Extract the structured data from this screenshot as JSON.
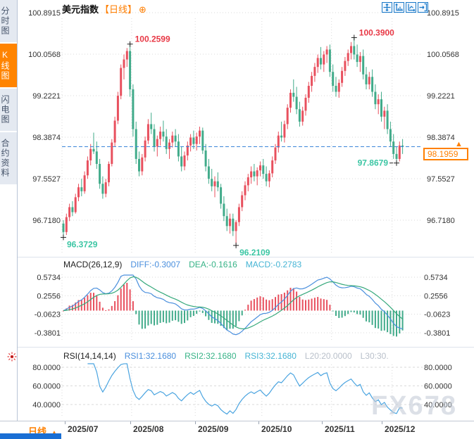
{
  "header": {
    "title": "美元指数",
    "period_tag": "【日线】",
    "add_icon": "⊕",
    "toolbar": [
      {
        "name": "pan-tool"
      },
      {
        "name": "y-axis-scale"
      },
      {
        "name": "auto-scale"
      },
      {
        "name": "exit-view"
      }
    ]
  },
  "sidebar": {
    "tabs": [
      {
        "label": "分时图",
        "active": false
      },
      {
        "label": "K线图",
        "active": true
      },
      {
        "label": "闪电图",
        "active": false
      },
      {
        "label": "合约资料",
        "active": false
      }
    ]
  },
  "main_chart": {
    "current_price": "98.1959",
    "annotations": [
      {
        "text": "100.2599",
        "index": 22,
        "kind": "high",
        "placement": "right-up"
      },
      {
        "text": "100.3900",
        "index": 96,
        "kind": "high",
        "placement": "right-up"
      },
      {
        "text": "97.8679",
        "index": 110,
        "kind": "low",
        "placement": "left"
      },
      {
        "text": "96.3729",
        "index": 0,
        "kind": "low",
        "placement": "below-right"
      },
      {
        "text": "96.2109",
        "index": 57,
        "kind": "low",
        "placement": "below-right"
      }
    ]
  },
  "chart_data": {
    "type": "candlestick",
    "title": "美元指数 日线",
    "y_ticks": [
      100.8915,
      100.0568,
      99.2221,
      98.3874,
      97.5527,
      96.718
    ],
    "months": [
      {
        "label": "2025/07",
        "index": 0
      },
      {
        "label": "2025/08",
        "index": 23
      },
      {
        "label": "2025/09",
        "index": 44
      },
      {
        "label": "2025/10",
        "index": 66
      },
      {
        "label": "2025/11",
        "index": 89
      },
      {
        "label": "2025/12",
        "index": 109
      }
    ],
    "candles": [
      [
        96.65,
        96.72,
        96.3729,
        96.48
      ],
      [
        96.48,
        96.85,
        96.42,
        96.78
      ],
      [
        96.78,
        97.05,
        96.7,
        96.98
      ],
      [
        96.98,
        97.1,
        96.8,
        96.88
      ],
      [
        96.88,
        97.25,
        96.85,
        97.18
      ],
      [
        97.18,
        97.45,
        97.1,
        97.38
      ],
      [
        97.38,
        97.55,
        97.2,
        97.3
      ],
      [
        97.3,
        97.7,
        97.25,
        97.62
      ],
      [
        97.62,
        98.0,
        97.55,
        97.92
      ],
      [
        97.92,
        98.25,
        97.82,
        98.15
      ],
      [
        98.15,
        98.48,
        98.05,
        98.1
      ],
      [
        98.1,
        98.3,
        97.75,
        97.85
      ],
      [
        97.85,
        97.95,
        97.35,
        97.45
      ],
      [
        97.45,
        97.6,
        97.15,
        97.25
      ],
      [
        97.25,
        97.55,
        97.18,
        97.48
      ],
      [
        97.48,
        97.9,
        97.4,
        97.85
      ],
      [
        97.85,
        98.35,
        97.8,
        98.28
      ],
      [
        98.28,
        98.8,
        98.2,
        98.72
      ],
      [
        98.72,
        99.3,
        98.65,
        99.22
      ],
      [
        99.22,
        99.85,
        99.15,
        99.78
      ],
      [
        99.78,
        100.05,
        99.55,
        99.95
      ],
      [
        99.95,
        100.18,
        99.8,
        100.12
      ],
      [
        100.12,
        100.2599,
        99.2,
        99.35
      ],
      [
        99.35,
        99.45,
        98.4,
        98.55
      ],
      [
        98.55,
        98.7,
        97.85,
        97.95
      ],
      [
        97.95,
        98.1,
        97.6,
        97.7
      ],
      [
        97.7,
        98.05,
        97.62,
        97.98
      ],
      [
        97.98,
        98.4,
        97.9,
        98.32
      ],
      [
        98.32,
        98.75,
        98.25,
        98.65
      ],
      [
        98.65,
        98.88,
        98.45,
        98.55
      ],
      [
        98.55,
        98.65,
        98.1,
        98.2
      ],
      [
        98.2,
        98.42,
        98.0,
        98.35
      ],
      [
        98.35,
        98.6,
        98.22,
        98.5
      ],
      [
        98.5,
        98.72,
        98.3,
        98.4
      ],
      [
        98.4,
        98.55,
        98.05,
        98.15
      ],
      [
        98.15,
        98.35,
        97.95,
        98.28
      ],
      [
        98.28,
        98.5,
        98.18,
        98.42
      ],
      [
        98.42,
        98.55,
        98.2,
        98.3
      ],
      [
        98.3,
        98.45,
        97.9,
        98.0
      ],
      [
        98.0,
        98.2,
        97.7,
        97.8
      ],
      [
        97.8,
        98.1,
        97.72,
        98.02
      ],
      [
        98.02,
        98.3,
        97.92,
        98.22
      ],
      [
        98.22,
        98.45,
        98.1,
        98.38
      ],
      [
        98.38,
        98.52,
        98.15,
        98.25
      ],
      [
        98.25,
        98.48,
        98.12,
        98.4
      ],
      [
        98.4,
        98.6,
        98.25,
        98.52
      ],
      [
        98.52,
        98.58,
        98.05,
        98.12
      ],
      [
        98.12,
        98.25,
        97.7,
        97.8
      ],
      [
        97.8,
        97.95,
        97.45,
        97.55
      ],
      [
        97.55,
        97.75,
        97.3,
        97.4
      ],
      [
        97.4,
        97.6,
        97.18,
        97.5
      ],
      [
        97.5,
        97.68,
        97.3,
        97.38
      ],
      [
        97.38,
        97.45,
        96.95,
        97.05
      ],
      [
        97.05,
        97.2,
        96.7,
        96.8
      ],
      [
        96.8,
        96.95,
        96.5,
        96.6
      ],
      [
        96.6,
        96.85,
        96.45,
        96.75
      ],
      [
        96.75,
        96.85,
        96.4,
        96.5
      ],
      [
        96.5,
        96.72,
        96.2109,
        96.68
      ],
      [
        96.68,
        97.05,
        96.6,
        96.98
      ],
      [
        96.98,
        97.3,
        96.9,
        97.22
      ],
      [
        97.22,
        97.5,
        97.12,
        97.42
      ],
      [
        97.42,
        97.65,
        97.3,
        97.58
      ],
      [
        97.58,
        97.8,
        97.45,
        97.7
      ],
      [
        97.7,
        97.85,
        97.5,
        97.6
      ],
      [
        97.6,
        97.78,
        97.42,
        97.72
      ],
      [
        97.72,
        97.9,
        97.6,
        97.82
      ],
      [
        97.82,
        97.95,
        97.55,
        97.65
      ],
      [
        97.65,
        97.8,
        97.4,
        97.5
      ],
      [
        97.5,
        97.72,
        97.38,
        97.66
      ],
      [
        97.66,
        98.0,
        97.58,
        97.92
      ],
      [
        97.92,
        98.25,
        97.85,
        98.18
      ],
      [
        98.18,
        98.5,
        98.08,
        98.42
      ],
      [
        98.42,
        98.7,
        98.3,
        98.38
      ],
      [
        98.38,
        98.72,
        98.28,
        98.65
      ],
      [
        98.65,
        99.05,
        98.55,
        98.98
      ],
      [
        98.98,
        99.35,
        98.88,
        99.28
      ],
      [
        99.28,
        99.55,
        99.1,
        99.2
      ],
      [
        99.2,
        99.4,
        98.85,
        98.95
      ],
      [
        98.95,
        99.1,
        98.6,
        98.7
      ],
      [
        98.7,
        99.0,
        98.62,
        98.92
      ],
      [
        98.92,
        99.25,
        98.82,
        99.18
      ],
      [
        99.18,
        99.5,
        99.08,
        99.42
      ],
      [
        99.42,
        99.7,
        99.3,
        99.62
      ],
      [
        99.62,
        99.88,
        99.5,
        99.8
      ],
      [
        99.8,
        100.05,
        99.68,
        99.98
      ],
      [
        99.98,
        100.2,
        99.75,
        99.85
      ],
      [
        99.85,
        100.12,
        99.7,
        100.05
      ],
      [
        100.05,
        100.22,
        99.88,
        100.15
      ],
      [
        100.15,
        100.25,
        99.6,
        99.7
      ],
      [
        99.7,
        99.85,
        99.3,
        99.42
      ],
      [
        99.42,
        99.6,
        99.2,
        99.3
      ],
      [
        99.3,
        99.55,
        99.18,
        99.48
      ],
      [
        99.48,
        99.8,
        99.4,
        99.72
      ],
      [
        99.72,
        100.0,
        99.62,
        99.92
      ],
      [
        99.92,
        100.15,
        99.82,
        100.08
      ],
      [
        100.08,
        100.3,
        99.95,
        100.22
      ],
      [
        100.22,
        100.39,
        99.95,
        100.05
      ],
      [
        100.05,
        100.25,
        99.8,
        99.9
      ],
      [
        99.9,
        100.1,
        99.7,
        100.02
      ],
      [
        100.02,
        100.15,
        99.55,
        99.65
      ],
      [
        99.65,
        99.8,
        99.35,
        99.45
      ],
      [
        99.45,
        99.7,
        99.35,
        99.6
      ],
      [
        99.6,
        99.75,
        99.2,
        99.3
      ],
      [
        99.3,
        99.45,
        98.95,
        99.05
      ],
      [
        99.05,
        99.25,
        98.85,
        99.15
      ],
      [
        99.15,
        99.3,
        98.7,
        98.8
      ],
      [
        98.8,
        99.0,
        98.55,
        98.92
      ],
      [
        98.92,
        99.05,
        98.45,
        98.55
      ],
      [
        98.55,
        98.7,
        98.2,
        98.3
      ],
      [
        98.3,
        98.45,
        97.95,
        98.05
      ],
      [
        98.05,
        98.2,
        97.8679,
        97.95
      ],
      [
        97.95,
        98.3,
        97.9,
        98.22
      ],
      [
        98.22,
        98.35,
        98.05,
        98.1959
      ]
    ]
  },
  "macd": {
    "name": "MACD(26,12,9)",
    "diff": "DIFF:-0.3007",
    "dea": "DEA:-0.1616",
    "macd": "MACD:-0.2783",
    "y_ticks": [
      0.5734,
      0.2556,
      -0.0623,
      -0.3801
    ]
  },
  "rsi": {
    "name": "RSI(14,14,14)",
    "rsi1": "RSI1:32.1680",
    "rsi2": "RSI2:32.1680",
    "rsi3": "RSI3:32.1680",
    "l20": "L20:20.0000",
    "l30": "L30:30.",
    "y_ticks": [
      80,
      60,
      40
    ]
  },
  "bottom_bar": {
    "period_label": "日线",
    "arrow": "▲"
  },
  "watermark": {
    "text": "FX678"
  },
  "colors": {
    "up": "#e8505e",
    "down": "#41ab8a",
    "high_label": "#e83946",
    "low_label": "#3cc6a4",
    "grid": "#dadada",
    "axis_text": "#333333",
    "price_line": "#3b86d8",
    "accent": "#ff7e00",
    "icon_blue": "#1878c8",
    "diff_line": "#4a8fdd",
    "dea_line": "#37a97c",
    "macd_text": "#45b4d4",
    "hist_up": "#e8505e",
    "hist_down": "#41ab8a",
    "rsi_line": "#4aa4e0",
    "muted": "#b9c0ca",
    "marker": "#222222"
  }
}
